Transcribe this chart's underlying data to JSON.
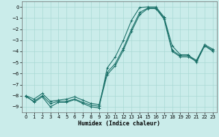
{
  "xlabel": "Humidex (Indice chaleur)",
  "bg_color": "#caecea",
  "grid_color": "#a8d8d4",
  "line_color": "#1a7068",
  "xlim": [
    -0.5,
    23.5
  ],
  "ylim": [
    -9.5,
    0.5
  ],
  "xticks": [
    0,
    1,
    2,
    3,
    4,
    5,
    6,
    7,
    8,
    9,
    10,
    11,
    12,
    13,
    14,
    15,
    16,
    17,
    18,
    19,
    20,
    21,
    22,
    23
  ],
  "yticks": [
    0,
    -1,
    -2,
    -3,
    -4,
    -5,
    -6,
    -7,
    -8,
    -9
  ],
  "line1_y": [
    -8.0,
    -8.6,
    -8.1,
    -9.0,
    -8.6,
    -8.6,
    -8.35,
    -8.7,
    -9.0,
    -9.1,
    -5.5,
    -4.5,
    -3.0,
    -1.2,
    -0.05,
    0.0,
    0.0,
    -0.9,
    -3.5,
    -4.3,
    -4.3,
    -5.0,
    -3.5,
    -4.0
  ],
  "line2_y": [
    -8.0,
    -8.3,
    -7.8,
    -8.5,
    -8.4,
    -8.3,
    -8.1,
    -8.4,
    -8.7,
    -8.8,
    -5.9,
    -5.1,
    -3.7,
    -2.0,
    -0.5,
    -0.1,
    -0.1,
    -1.0,
    -3.9,
    -4.4,
    -4.4,
    -4.8,
    -3.4,
    -3.8
  ],
  "line3_y": [
    -8.1,
    -8.5,
    -8.0,
    -8.7,
    -8.5,
    -8.5,
    -8.3,
    -8.6,
    -8.85,
    -8.95,
    -6.1,
    -5.3,
    -3.9,
    -2.2,
    -0.7,
    -0.15,
    -0.15,
    -1.1,
    -4.0,
    -4.5,
    -4.5,
    -4.9,
    -3.5,
    -3.9
  ]
}
